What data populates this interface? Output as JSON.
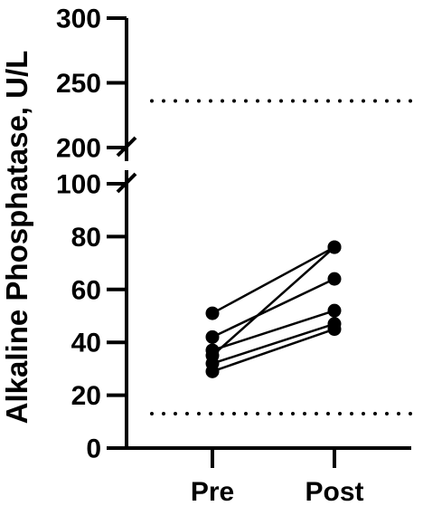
{
  "chart_data": {
    "type": "scatter",
    "ylabel": "Alkaline Phosphatase,  U/L",
    "categories": [
      "Pre",
      "Post"
    ],
    "y_axis": {
      "broken": true,
      "lower_segment": {
        "range": [
          0,
          100
        ],
        "ticks": [
          0,
          20,
          40,
          60,
          80,
          100
        ]
      },
      "upper_segment": {
        "range": [
          200,
          300
        ],
        "ticks": [
          200,
          250,
          300
        ]
      }
    },
    "reference_lines": [
      {
        "y": 236,
        "style": "dotted"
      },
      {
        "y": 13,
        "style": "dotted"
      }
    ],
    "series": [
      {
        "values": [
          51,
          76
        ]
      },
      {
        "values": [
          42,
          64
        ]
      },
      {
        "values": [
          37,
          52
        ]
      },
      {
        "values": [
          35,
          76
        ]
      },
      {
        "values": [
          32,
          47
        ]
      },
      {
        "values": [
          29,
          45
        ]
      }
    ],
    "grid": false,
    "legend": "none"
  }
}
